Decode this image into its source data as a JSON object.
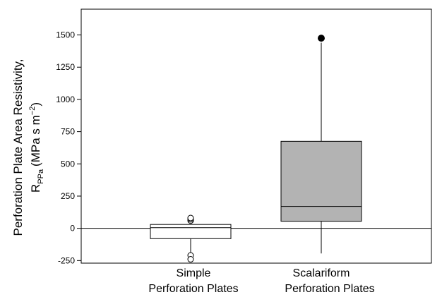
{
  "chart_data": {
    "type": "box",
    "ylabel": {
      "line1": "Perforation Plate Area Resistivity,",
      "symbol": "R",
      "symbol_subscript": "PPa",
      "units_prefix": "(MPa s m",
      "units_exponent": "−2",
      "units_suffix": ")"
    },
    "ylim": [
      -270,
      1700
    ],
    "yticks": [
      "-250",
      "0",
      "250",
      "500",
      "750",
      "1000",
      "1250",
      "1500"
    ],
    "ytick_values": [
      -250,
      0,
      250,
      500,
      750,
      1000,
      1250,
      1500
    ],
    "reference_line": 0,
    "categories": [
      {
        "line1": "Simple",
        "line2": "Perforation Plates",
        "whisker_low": -190,
        "q1": -80,
        "median": 5,
        "q3": 30,
        "whisker_high": 30,
        "outliers": [
          -210,
          -240,
          60,
          70,
          80
        ],
        "fill": "#ffffff",
        "outlier_style": "open"
      },
      {
        "line1": "Scalariform",
        "line2": "Perforation Plates",
        "whisker_low": -195,
        "q1": 55,
        "median": 170,
        "q3": 675,
        "whisker_high": 1440,
        "outliers": [
          1475
        ],
        "fill": "#b3b3b3",
        "outlier_style": "filled"
      }
    ]
  }
}
